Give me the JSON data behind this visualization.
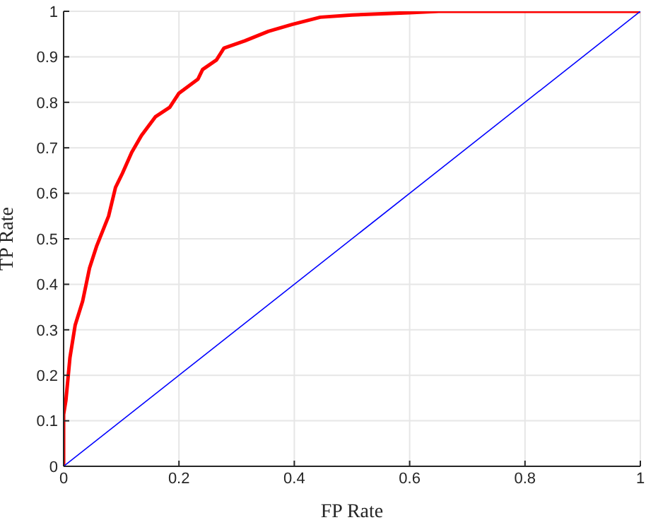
{
  "chart_data": {
    "type": "line",
    "xlabel": "FP Rate",
    "ylabel": "TP Rate",
    "xlim": [
      0,
      1
    ],
    "ylim": [
      0,
      1
    ],
    "xticks": [
      0,
      0.2,
      0.4,
      0.6,
      0.8,
      1
    ],
    "yticks": [
      0,
      0.1,
      0.2,
      0.3,
      0.4,
      0.5,
      0.6,
      0.7,
      0.8,
      0.9,
      1
    ],
    "grid": true,
    "legend": false,
    "marker": "none",
    "line_style": "solid",
    "series": [
      {
        "color": "#ff0000",
        "x": [
          0,
          0,
          0.004,
          0.011,
          0.02,
          0.033,
          0.045,
          0.057,
          0.078,
          0.09,
          0.102,
          0.118,
          0.135,
          0.159,
          0.184,
          0.2,
          0.233,
          0.241,
          0.265,
          0.278,
          0.314,
          0.355,
          0.396,
          0.445,
          0.5,
          0.6,
          0.65,
          1
        ],
        "values": [
          0,
          0.114,
          0.145,
          0.239,
          0.31,
          0.363,
          0.436,
          0.483,
          0.55,
          0.613,
          0.644,
          0.69,
          0.727,
          0.768,
          0.789,
          0.82,
          0.851,
          0.872,
          0.893,
          0.919,
          0.935,
          0.956,
          0.971,
          0.987,
          0.992,
          0.997,
          1,
          1
        ]
      },
      {
        "color": "#0000ff",
        "x": [
          0,
          1
        ],
        "values": [
          0,
          1
        ]
      }
    ]
  }
}
